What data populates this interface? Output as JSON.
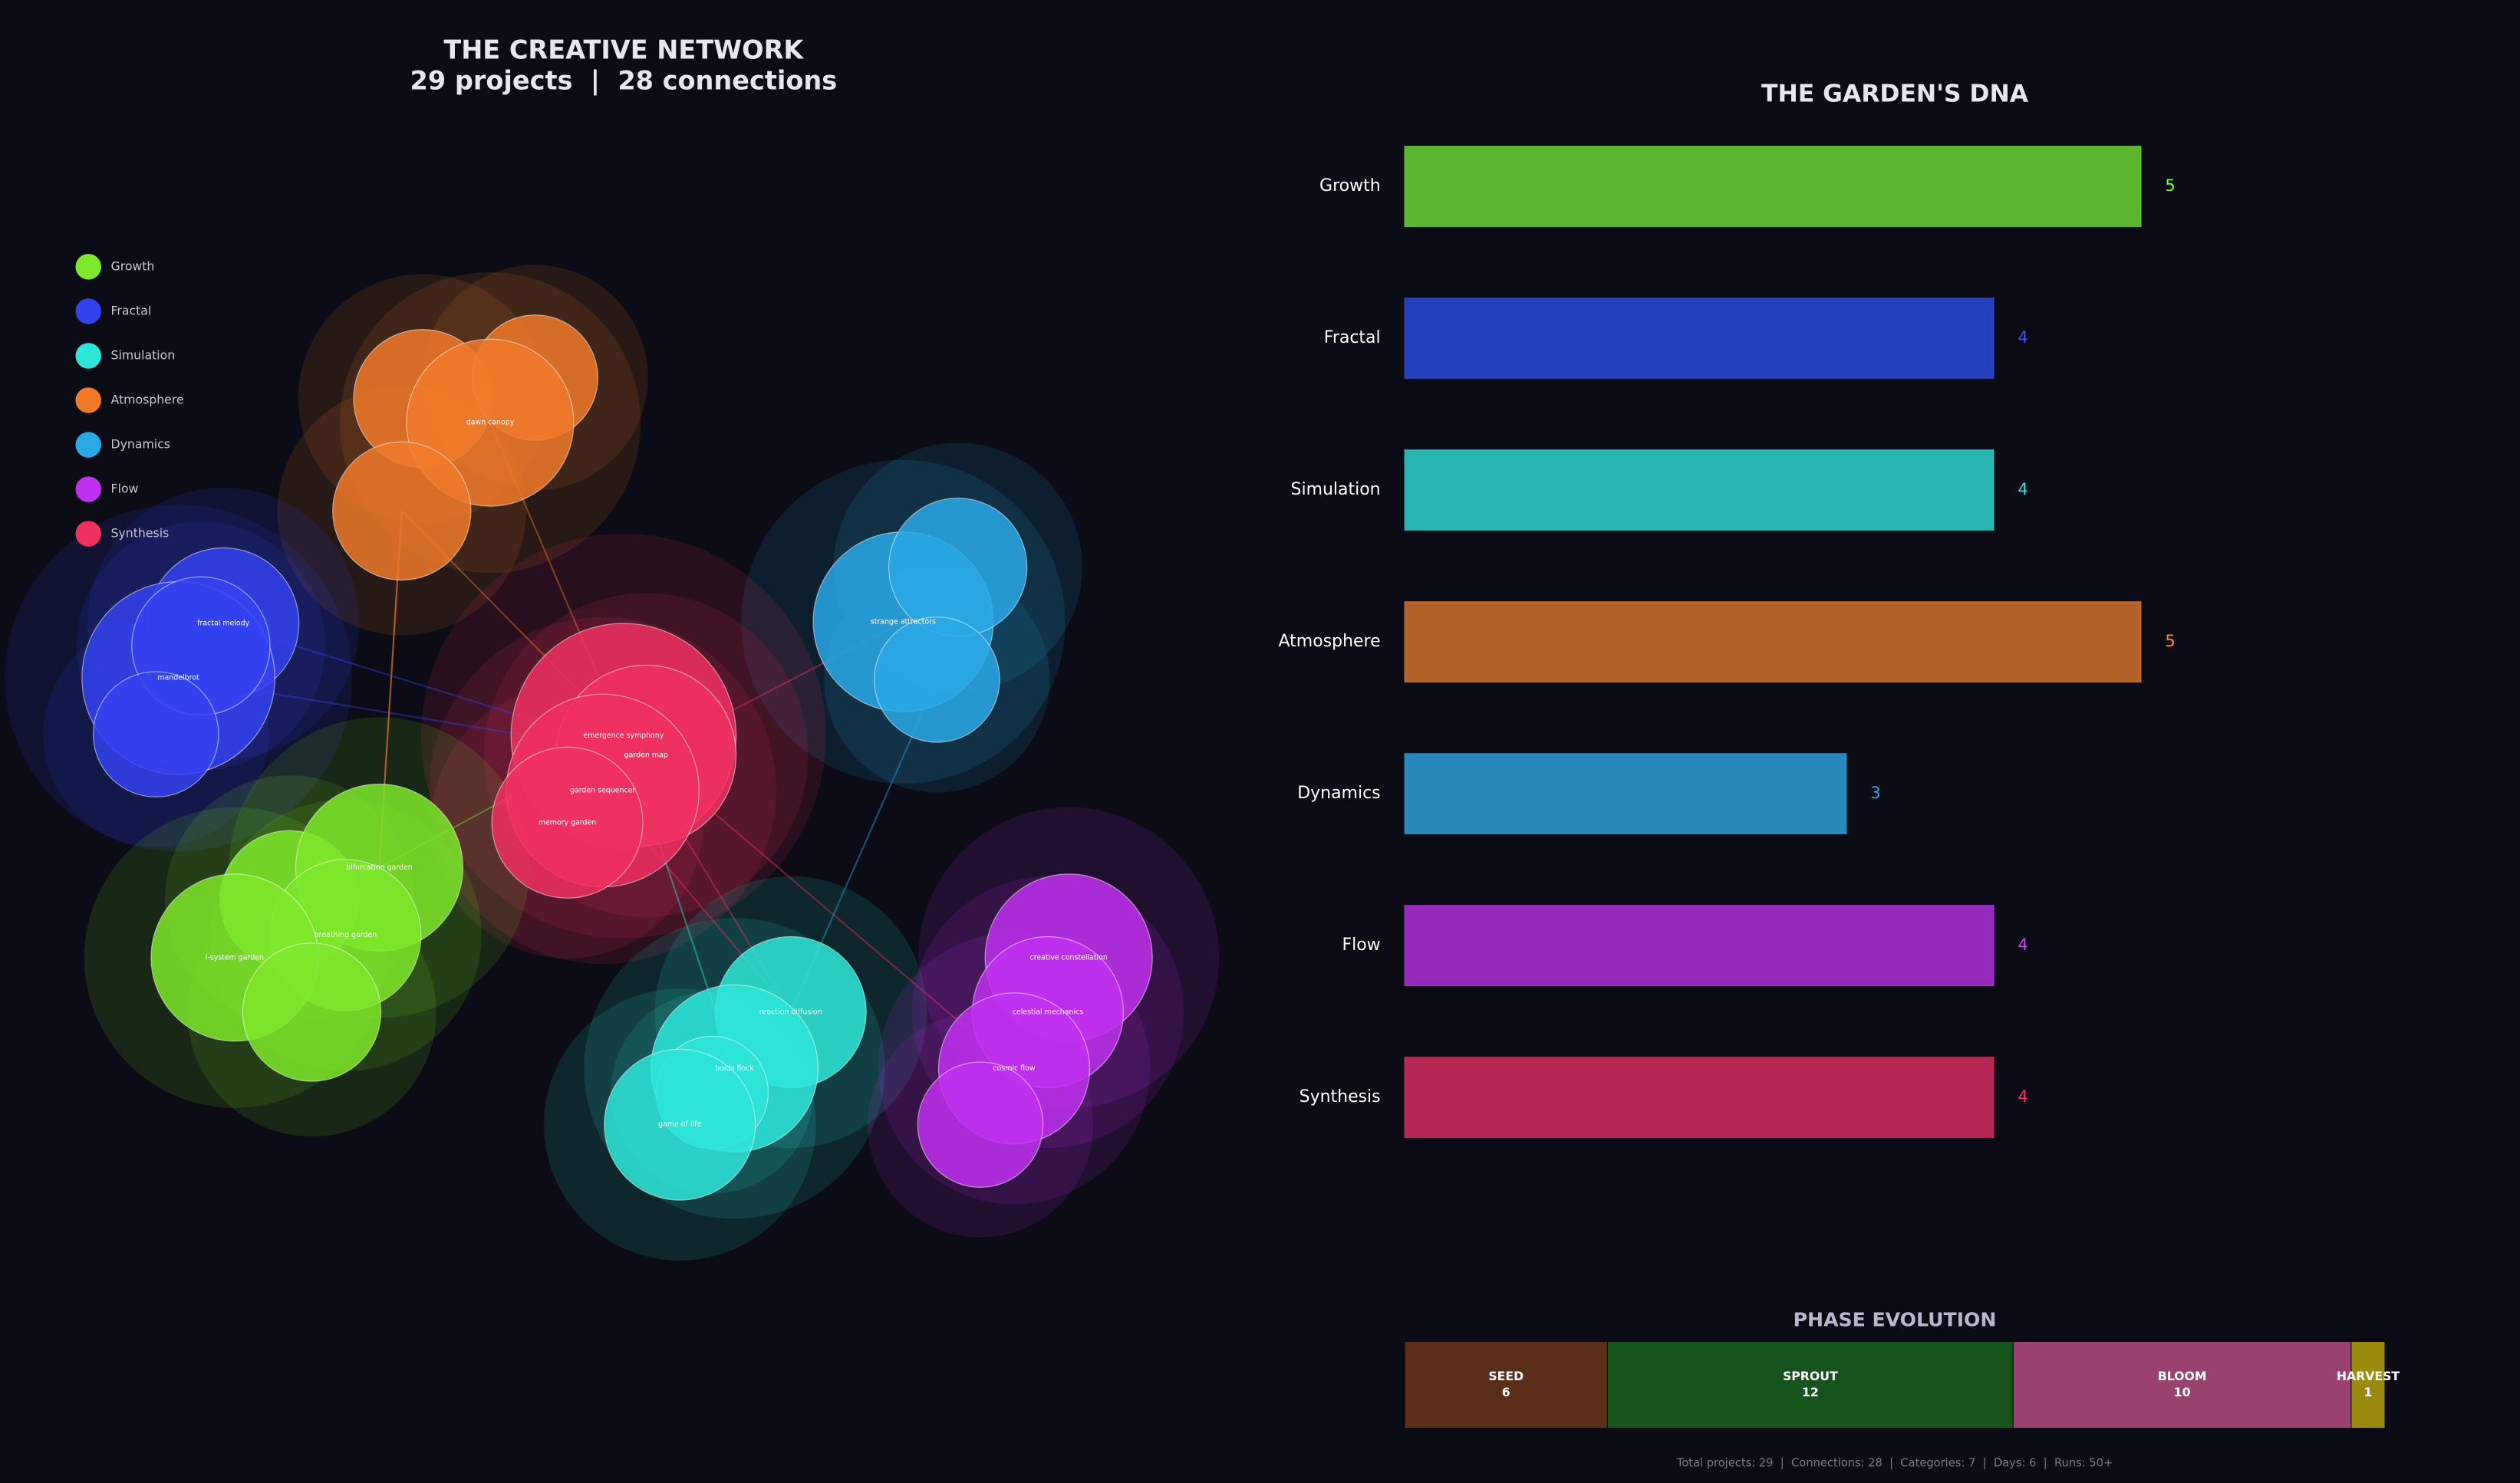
{
  "chart_data": [
    {
      "type": "network",
      "title": "THE CREATIVE NETWORK",
      "subtitle": "29 projects  |  28 connections",
      "legend": [
        {
          "name": "Growth",
          "color": "#7ee82a"
        },
        {
          "name": "Fractal",
          "color": "#3342f0"
        },
        {
          "name": "Simulation",
          "color": "#2ee6d8"
        },
        {
          "name": "Atmosphere",
          "color": "#f07a2a"
        },
        {
          "name": "Dynamics",
          "color": "#2aa8e6"
        },
        {
          "name": "Flow",
          "color": "#c030f0"
        },
        {
          "name": "Synthesis",
          "color": "#f03060"
        }
      ],
      "nodes": [
        {
          "label": "dawn canopy"
        },
        {
          "label": "fractal melody"
        },
        {
          "label": "mandelbrot"
        },
        {
          "label": "strange attractors"
        },
        {
          "label": "emergence symphony"
        },
        {
          "label": "garden map"
        },
        {
          "label": "garden sequencer"
        },
        {
          "label": "memory garden"
        },
        {
          "label": "bifurcation garden"
        },
        {
          "label": "breathing garden"
        },
        {
          "label": "l-system garden"
        },
        {
          "label": "reaction diffusion"
        },
        {
          "label": "boids flock"
        },
        {
          "label": "game of life"
        },
        {
          "label": "creative constellation"
        },
        {
          "label": "celestial mechanics"
        },
        {
          "label": "cosmic flow"
        }
      ]
    },
    {
      "type": "hbar",
      "title": "THE GARDEN'S DNA",
      "categories": [
        "Growth",
        "Fractal",
        "Simulation",
        "Atmosphere",
        "Dynamics",
        "Flow",
        "Synthesis"
      ],
      "values": [
        5,
        4,
        4,
        5,
        3,
        4,
        4
      ],
      "colors": [
        "#5db52e",
        "#2540bd",
        "#27b5b4",
        "#b3622a",
        "#2889bb",
        "#9529bd",
        "#b32553"
      ],
      "value_label_colors": [
        "#7dff3a",
        "#3a55ff",
        "#2ee6d8",
        "#ff8c30",
        "#2aa8e6",
        "#d040ff",
        "#ff3366"
      ],
      "xlim": [
        0,
        5.5
      ]
    },
    {
      "type": "stacked-hbar",
      "title": "PHASE EVOLUTION",
      "categories": [
        "SEED",
        "SPROUT",
        "BLOOM",
        "HARVEST"
      ],
      "values": [
        6,
        12,
        10,
        1
      ],
      "colors": [
        "#5a2e18",
        "#17531d",
        "#9a4170",
        "#9b8a0e"
      ],
      "xlim": [
        0,
        29
      ],
      "footer": "Total projects: 29  |  Connections: 28  |  Categories: 7  |  Days: 6  |  Runs: 50+"
    }
  ]
}
